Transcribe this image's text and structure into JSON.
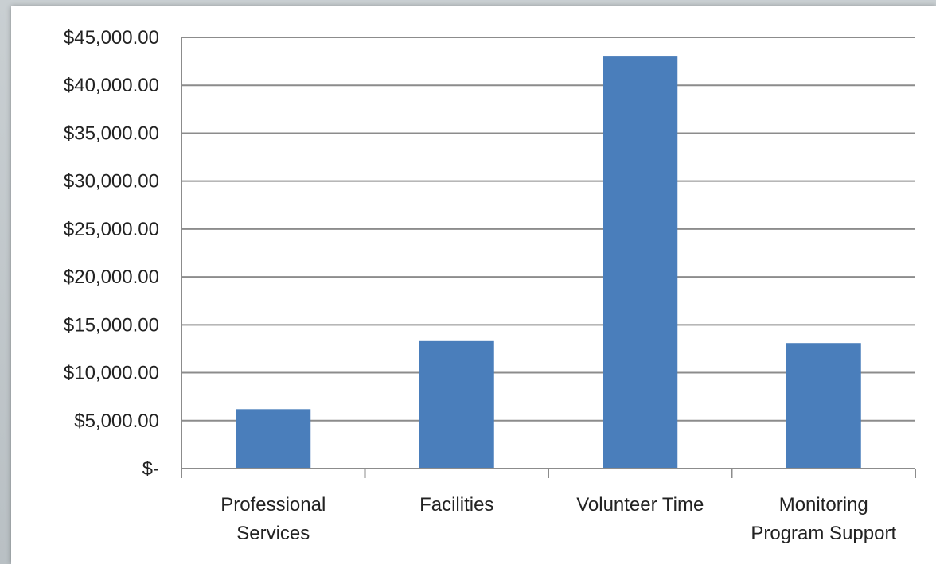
{
  "chart_data": {
    "type": "bar",
    "title": "",
    "xlabel": "",
    "ylabel": "",
    "categories": [
      [
        "Professional",
        "Services"
      ],
      [
        "Facilities"
      ],
      [
        "Volunteer Time"
      ],
      [
        "Monitoring",
        "Program Support"
      ]
    ],
    "values": [
      6200,
      13300,
      43000,
      13100
    ],
    "ylim": [
      0,
      45000
    ],
    "yticks": [
      0,
      5000,
      10000,
      15000,
      20000,
      25000,
      30000,
      35000,
      40000,
      45000
    ],
    "ytick_labels": [
      "$-",
      "$5,000.00",
      "$10,000.00",
      "$15,000.00",
      "$20,000.00",
      "$25,000.00",
      "$30,000.00",
      "$35,000.00",
      "$40,000.00",
      "$45,000.00"
    ],
    "grid": true,
    "legend": "none",
    "colors": {
      "bar": "#4a7ebb",
      "grid": "#8c8c8c",
      "axis": "#8c8c8c"
    }
  }
}
